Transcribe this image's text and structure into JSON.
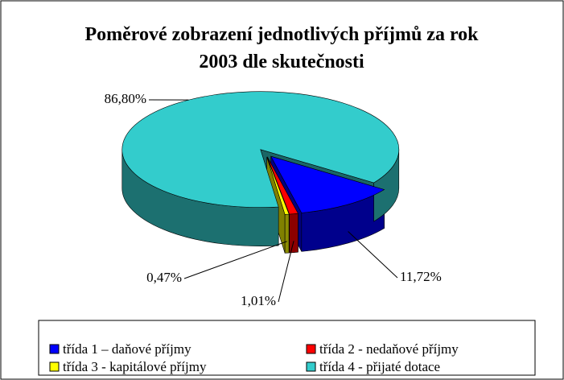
{
  "chart_data": {
    "type": "pie3d",
    "title": "Poměrové zobrazení jednotlivých příjmů za rok 2003 dle skutečnosti",
    "categories": [
      "třída 1 – daňové příjmy",
      "třída 2 - nedaňové příjmy",
      "třída 3 - kapitálové příjmy",
      "třída 4 - přijaté dotace"
    ],
    "values": [
      11.72,
      1.01,
      0.47,
      86.8
    ],
    "value_labels": [
      "11,72%",
      "1,01%",
      "0,47%",
      "86,80%"
    ],
    "colors": [
      "#0000ff",
      "#ff0000",
      "#ffff00",
      "#33cccc"
    ],
    "legend": "bottom"
  }
}
